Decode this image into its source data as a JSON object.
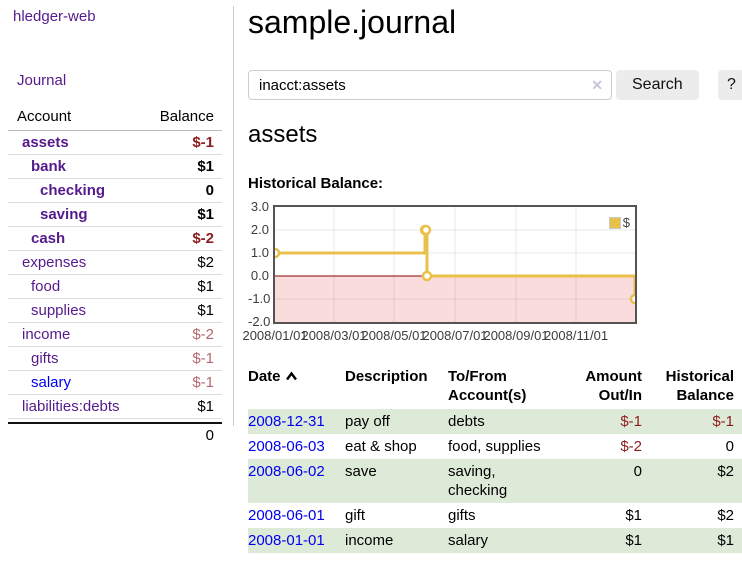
{
  "app": {
    "title": "hledger-web",
    "nav_journal": "Journal"
  },
  "sidebar": {
    "account_table": {
      "col_account": "Account",
      "col_balance": "Balance",
      "rows": [
        {
          "name": "assets",
          "balance": "$-1",
          "level": 1,
          "bold": true,
          "neg": "strong",
          "link": "visited"
        },
        {
          "name": "bank",
          "balance": "$1",
          "level": 2,
          "bold": true,
          "neg": "none",
          "link": "visited"
        },
        {
          "name": "checking",
          "balance": "0",
          "level": 3,
          "bold": true,
          "neg": "none",
          "link": "visited"
        },
        {
          "name": "saving",
          "balance": "$1",
          "level": 3,
          "bold": true,
          "neg": "none",
          "link": "visited"
        },
        {
          "name": "cash",
          "balance": "$-2",
          "level": 2,
          "bold": true,
          "neg": "strong",
          "link": "visited"
        },
        {
          "name": "expenses",
          "balance": "$2",
          "level": 1,
          "bold": false,
          "neg": "none",
          "link": "visited"
        },
        {
          "name": "food",
          "balance": "$1",
          "level": 2,
          "bold": false,
          "neg": "none",
          "link": "visited"
        },
        {
          "name": "supplies",
          "balance": "$1",
          "level": 2,
          "bold": false,
          "neg": "none",
          "link": "visited"
        },
        {
          "name": "income",
          "balance": "$-2",
          "level": 1,
          "bold": false,
          "neg": "muted",
          "link": "visited"
        },
        {
          "name": "gifts",
          "balance": "$-1",
          "level": 2,
          "bold": false,
          "neg": "muted",
          "link": "visited"
        },
        {
          "name": "salary",
          "balance": "$-1",
          "level": 2,
          "bold": false,
          "neg": "muted",
          "link": "unvisited"
        },
        {
          "name": "liabilities:debts",
          "balance": "$1",
          "level": 1,
          "bold": false,
          "neg": "none",
          "link": "visited"
        }
      ],
      "total": "0"
    }
  },
  "header": {
    "title": "sample.journal"
  },
  "search": {
    "value": "inacct:assets",
    "clear_icon": "✕",
    "button_label": "Search",
    "help_label": "?"
  },
  "account_page": {
    "heading": "assets",
    "chart_title": "Historical Balance:"
  },
  "chart_data": {
    "type": "line",
    "step": true,
    "title": "Historical Balance:",
    "legend": {
      "label": "$",
      "position": "top-right"
    },
    "x_range": [
      "2008-01-01",
      "2008-12-31"
    ],
    "ylim": [
      -2.0,
      3.0
    ],
    "grid": true,
    "y_ticks": [
      {
        "value": 3.0,
        "label": "3.0"
      },
      {
        "value": 2.0,
        "label": "2.0"
      },
      {
        "value": 1.0,
        "label": "1.0"
      },
      {
        "value": 0.0,
        "label": "0.0"
      },
      {
        "value": -1.0,
        "label": "-1.0"
      },
      {
        "value": -2.0,
        "label": "-2.0"
      }
    ],
    "x_ticks": [
      {
        "date": "2008-01-01",
        "label": "2008/01/01"
      },
      {
        "date": "2008-03-01",
        "label": "2008/03/01"
      },
      {
        "date": "2008-05-01",
        "label": "2008/05/01"
      },
      {
        "date": "2008-07-01",
        "label": "2008/07/01"
      },
      {
        "date": "2008-09-01",
        "label": "2008/09/01"
      },
      {
        "date": "2008-11-01",
        "label": "2008/11/01"
      }
    ],
    "series": [
      {
        "name": "$",
        "color": "#e9c04a",
        "points": [
          {
            "date": "2008-01-01",
            "value": 1
          },
          {
            "date": "2008-06-01",
            "value": 2
          },
          {
            "date": "2008-06-02",
            "value": 2
          },
          {
            "date": "2008-06-03",
            "value": 0
          },
          {
            "date": "2008-12-31",
            "value": -1
          }
        ]
      }
    ],
    "colors": {
      "series": "#e9c04a",
      "zero_line": "#8b0000",
      "negative_region": "#fbdcdc",
      "grid": "rgba(0,0,0,0.09)"
    }
  },
  "register": {
    "columns": {
      "date": "Date",
      "description": "Description",
      "accounts": "To/From Account(s)",
      "amount": "Amount Out/In",
      "balance": "Historical Balance"
    },
    "rows": [
      {
        "date": "2008-12-31",
        "description": "pay off",
        "accounts": "debts",
        "amount": "$-1",
        "amount_neg": true,
        "balance": "$-1",
        "balance_neg": true
      },
      {
        "date": "2008-06-03",
        "description": "eat & shop",
        "accounts": "food, supplies",
        "amount": "$-2",
        "amount_neg": true,
        "balance": "0",
        "balance_neg": false
      },
      {
        "date": "2008-06-02",
        "description": "save",
        "accounts": "saving, checking",
        "amount": "0",
        "amount_neg": false,
        "balance": "$2",
        "balance_neg": false
      },
      {
        "date": "2008-06-01",
        "description": "gift",
        "accounts": "gifts",
        "amount": "$1",
        "amount_neg": false,
        "balance": "$2",
        "balance_neg": false
      },
      {
        "date": "2008-01-01",
        "description": "income",
        "accounts": "salary",
        "amount": "$1",
        "amount_neg": false,
        "balance": "$1",
        "balance_neg": false
      }
    ]
  }
}
